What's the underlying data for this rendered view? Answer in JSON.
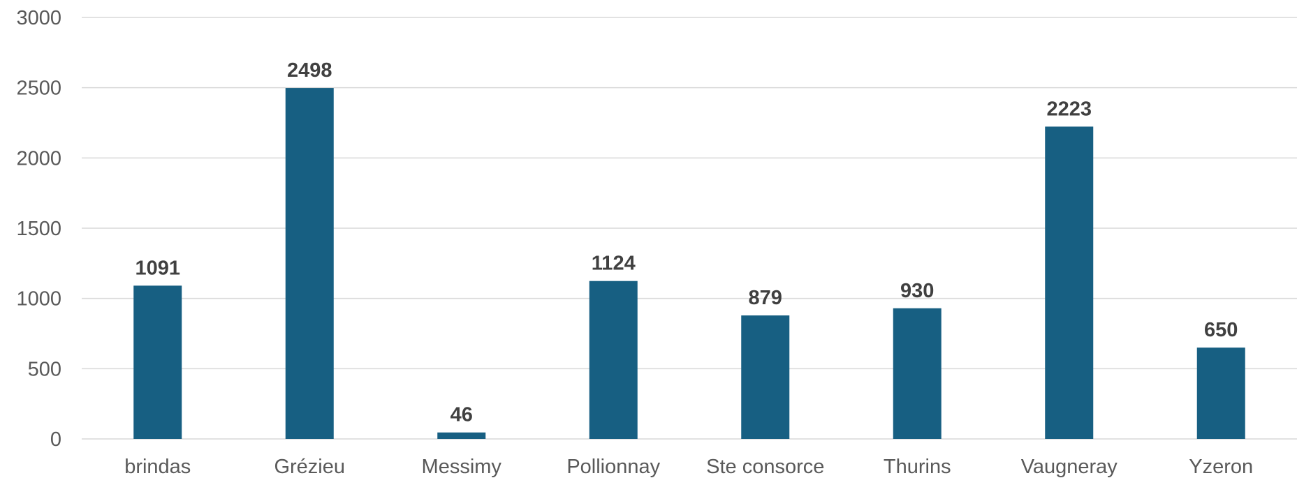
{
  "chart_data": {
    "type": "bar",
    "title": "",
    "xlabel": "",
    "ylabel": "",
    "categories": [
      "brindas",
      "Grézieu",
      "Messimy",
      "Pollionnay",
      "Ste consorce",
      "Thurins",
      "Vaugneray",
      "Yzeron"
    ],
    "values": [
      1091,
      2498,
      46,
      1124,
      879,
      930,
      2223,
      650
    ],
    "ylim": [
      0,
      3000
    ],
    "yticks": [
      0,
      500,
      1000,
      1500,
      2000,
      2500,
      3000
    ],
    "grid": true,
    "legend": "none",
    "bar_color": "#175f82",
    "data_labels": true
  }
}
